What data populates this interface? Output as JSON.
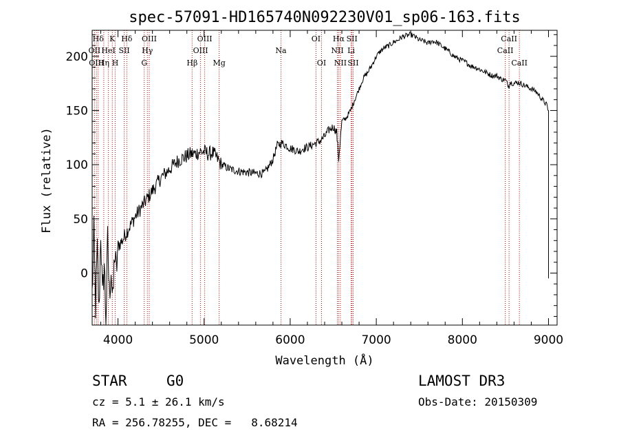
{
  "chart_data": {
    "type": "line",
    "title": "spec-57091-HD165740N092230V01_sp06-163.fits",
    "xlabel": "Wavelength (Å)",
    "ylabel": "Flux (relative)",
    "xlim": [
      3700,
      9100
    ],
    "ylim": [
      -48,
      224
    ],
    "xticks": [
      4000,
      5000,
      6000,
      7000,
      8000,
      9000
    ],
    "yticks": [
      0,
      50,
      100,
      150,
      200
    ],
    "grid": false,
    "series": [
      {
        "name": "spectrum",
        "x": [
          3700,
          3720,
          3740,
          3760,
          3780,
          3800,
          3820,
          3840,
          3860,
          3880,
          3900,
          3920,
          3940,
          3960,
          3980,
          4000,
          4050,
          4100,
          4150,
          4200,
          4250,
          4300,
          4350,
          4400,
          4450,
          4500,
          4550,
          4600,
          4650,
          4700,
          4750,
          4800,
          4850,
          4900,
          4950,
          5000,
          5050,
          5100,
          5150,
          5200,
          5250,
          5300,
          5400,
          5500,
          5600,
          5700,
          5750,
          5800,
          5850,
          5900,
          5950,
          6000,
          6050,
          6100,
          6150,
          6200,
          6250,
          6300,
          6350,
          6400,
          6450,
          6500,
          6540,
          6563,
          6600,
          6650,
          6700,
          6750,
          6800,
          6850,
          6900,
          6950,
          7000,
          7050,
          7100,
          7150,
          7200,
          7250,
          7300,
          7350,
          7400,
          7450,
          7500,
          7550,
          7600,
          7650,
          7700,
          7750,
          7800,
          7850,
          7900,
          7950,
          8000,
          8050,
          8100,
          8150,
          8200,
          8250,
          8300,
          8350,
          8400,
          8450,
          8500,
          8542,
          8550,
          8600,
          8650,
          8700,
          8750,
          8800,
          8850,
          8900,
          8950,
          8980,
          9000
        ],
        "y": [
          -20,
          35,
          -30,
          20,
          -38,
          40,
          -25,
          10,
          -45,
          30,
          -20,
          5,
          -30,
          20,
          0,
          25,
          30,
          38,
          45,
          52,
          58,
          64,
          70,
          76,
          82,
          88,
          92,
          96,
          100,
          104,
          106,
          108,
          110,
          110,
          112,
          112,
          110,
          111,
          106,
          100,
          98,
          96,
          94,
          93,
          92,
          92,
          98,
          105,
          118,
          120,
          118,
          115,
          114,
          112,
          115,
          116,
          118,
          120,
          122,
          126,
          132,
          135,
          130,
          105,
          140,
          143,
          150,
          160,
          170,
          180,
          185,
          192,
          200,
          205,
          208,
          210,
          213,
          215,
          218,
          219,
          220,
          218,
          215,
          214,
          212,
          214,
          213,
          210,
          207,
          204,
          200,
          198,
          196,
          194,
          191,
          190,
          188,
          186,
          184,
          182,
          182,
          179,
          178,
          172,
          176,
          175,
          176,
          174,
          172,
          170,
          168,
          163,
          158,
          155,
          150
        ]
      }
    ],
    "spectral_lines": [
      {
        "label": "Hδ",
        "wavelength": 3770,
        "row": 0
      },
      {
        "label": "K",
        "wavelength": 3934,
        "row": 0
      },
      {
        "label": "Hδ",
        "wavelength": 4102,
        "row": 0
      },
      {
        "label": "OIII",
        "wavelength": 4363,
        "row": 0
      },
      {
        "label": "OIII",
        "wavelength": 5007,
        "row": 0
      },
      {
        "label": "OI",
        "wavelength": 6300,
        "row": 0
      },
      {
        "label": "Hα",
        "wavelength": 6563,
        "row": 0
      },
      {
        "label": "SII",
        "wavelength": 6717,
        "row": 0
      },
      {
        "label": "CaII",
        "wavelength": 8542,
        "row": 0
      },
      {
        "label": "OII",
        "wavelength": 3727,
        "row": 1
      },
      {
        "label": "HeI",
        "wavelength": 3889,
        "row": 1
      },
      {
        "label": "SII",
        "wavelength": 4072,
        "row": 1
      },
      {
        "label": "Hγ",
        "wavelength": 4341,
        "row": 1
      },
      {
        "label": "OIII",
        "wavelength": 4959,
        "row": 1
      },
      {
        "label": "Na",
        "wavelength": 5893,
        "row": 1
      },
      {
        "label": "NII",
        "wavelength": 6548,
        "row": 1
      },
      {
        "label": "Li",
        "wavelength": 6708,
        "row": 1
      },
      {
        "label": "CaII",
        "wavelength": 8498,
        "row": 1
      },
      {
        "label": "OIII",
        "wavelength": 3750,
        "row": 2
      },
      {
        "label": "Hη",
        "wavelength": 3835,
        "row": 2
      },
      {
        "label": "H",
        "wavelength": 3968,
        "row": 2
      },
      {
        "label": "G",
        "wavelength": 4305,
        "row": 2
      },
      {
        "label": "Hβ",
        "wavelength": 4861,
        "row": 2
      },
      {
        "label": "Mg",
        "wavelength": 5175,
        "row": 2
      },
      {
        "label": "OI",
        "wavelength": 6364,
        "row": 2
      },
      {
        "label": "NII",
        "wavelength": 6583,
        "row": 2
      },
      {
        "label": "SII",
        "wavelength": 6731,
        "row": 2
      },
      {
        "label": "CaII",
        "wavelength": 8662,
        "row": 2
      }
    ],
    "line_color": "#000000",
    "marker_color": "#cc0000"
  },
  "info": {
    "object_class": "STAR",
    "subclass": "G0",
    "cz": "cz = 5.1 ± 26.1 km/s",
    "coords": "RA = 256.78255, DEC =   8.68214",
    "survey": "LAMOST DR3",
    "obs_date": "Obs-Date: 20150309"
  }
}
